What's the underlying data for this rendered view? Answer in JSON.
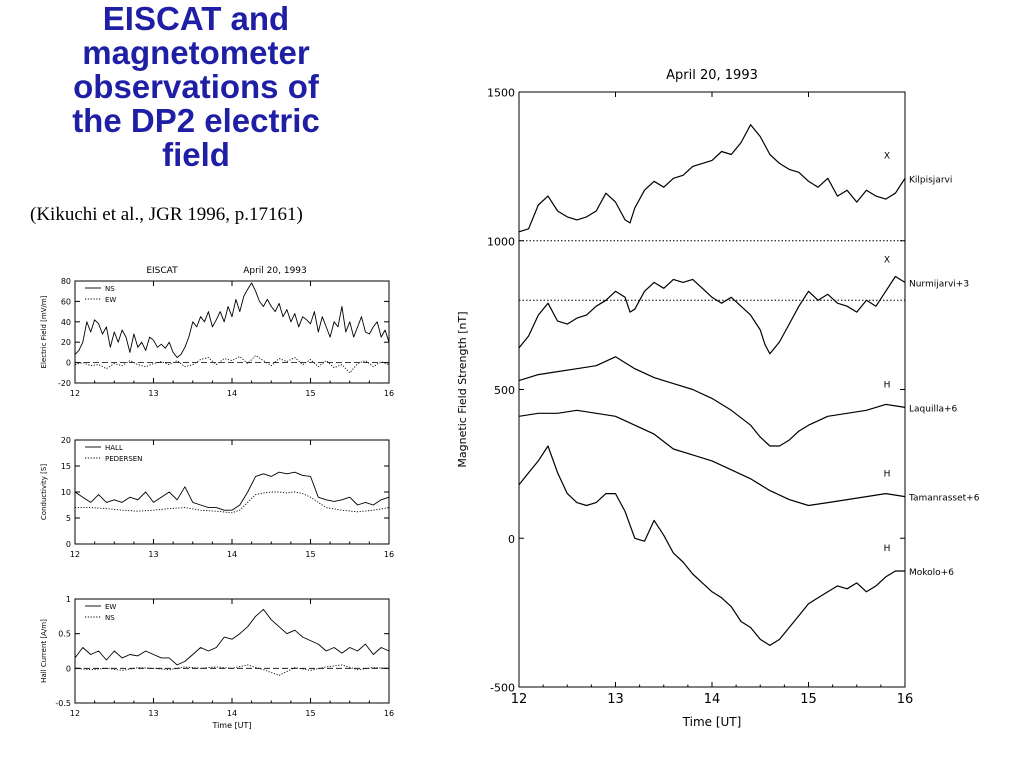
{
  "slide": {
    "title_lines": [
      "EISCAT and",
      "magnetometer",
      "observations of",
      "the DP2 electric",
      "field"
    ],
    "citation": "(Kikuchi et al., JGR 1996, p.17161)"
  },
  "chart_data": [
    {
      "type": "line",
      "title": "EISCAT     April 20, 1993",
      "xlabel": "",
      "ylabel": "Electric Field  [mV/m]",
      "xlim": [
        12,
        16
      ],
      "ylim": [
        -20,
        80
      ],
      "xticks": [
        12,
        13,
        14,
        15,
        16
      ],
      "yticks": [
        -20,
        0,
        20,
        40,
        60,
        80
      ],
      "zero_line": true,
      "legend": "top-left",
      "series": [
        {
          "name": "NS",
          "style": "solid",
          "x": [
            12.0,
            12.05,
            12.1,
            12.15,
            12.2,
            12.25,
            12.3,
            12.35,
            12.4,
            12.45,
            12.5,
            12.55,
            12.6,
            12.65,
            12.7,
            12.75,
            12.8,
            12.85,
            12.9,
            12.95,
            13.0,
            13.05,
            13.1,
            13.15,
            13.2,
            13.25,
            13.3,
            13.35,
            13.4,
            13.45,
            13.5,
            13.55,
            13.6,
            13.65,
            13.7,
            13.75,
            13.8,
            13.85,
            13.9,
            13.95,
            14.0,
            14.05,
            14.1,
            14.15,
            14.2,
            14.25,
            14.3,
            14.35,
            14.4,
            14.45,
            14.5,
            14.55,
            14.6,
            14.65,
            14.7,
            14.75,
            14.8,
            14.85,
            14.9,
            14.95,
            15.0,
            15.05,
            15.1,
            15.15,
            15.2,
            15.25,
            15.3,
            15.35,
            15.4,
            15.45,
            15.5,
            15.55,
            15.6,
            15.65,
            15.7,
            15.75,
            15.8,
            15.85,
            15.9,
            15.95,
            16.0
          ],
          "y": [
            8,
            12,
            20,
            40,
            30,
            42,
            38,
            28,
            35,
            15,
            30,
            20,
            32,
            25,
            10,
            28,
            15,
            20,
            12,
            25,
            22,
            15,
            18,
            14,
            20,
            10,
            5,
            8,
            15,
            25,
            40,
            35,
            45,
            40,
            50,
            35,
            42,
            50,
            40,
            55,
            45,
            62,
            50,
            65,
            72,
            78,
            70,
            60,
            55,
            62,
            55,
            50,
            58,
            45,
            52,
            40,
            48,
            35,
            45,
            42,
            38,
            50,
            30,
            45,
            35,
            25,
            40,
            35,
            55,
            30,
            40,
            25,
            35,
            45,
            30,
            28,
            35,
            40,
            25,
            32,
            20
          ]
        },
        {
          "name": "EW",
          "style": "dotted",
          "x": [
            12.0,
            12.1,
            12.2,
            12.3,
            12.4,
            12.5,
            12.6,
            12.7,
            12.8,
            12.9,
            13.0,
            13.1,
            13.2,
            13.3,
            13.4,
            13.5,
            13.6,
            13.7,
            13.8,
            13.9,
            14.0,
            14.1,
            14.2,
            14.3,
            14.4,
            14.5,
            14.6,
            14.7,
            14.8,
            14.9,
            15.0,
            15.1,
            15.2,
            15.3,
            15.4,
            15.5,
            15.6,
            15.7,
            15.8,
            15.9,
            16.0
          ],
          "y": [
            -2,
            0,
            -3,
            -2,
            -6,
            -1,
            -3,
            2,
            -2,
            -4,
            -1,
            1,
            -2,
            2,
            -4,
            -2,
            3,
            5,
            -2,
            4,
            2,
            6,
            -1,
            7,
            2,
            -3,
            4,
            1,
            5,
            -2,
            3,
            -4,
            2,
            -5,
            -2,
            -10,
            -1,
            2,
            -4,
            1,
            -2
          ]
        }
      ]
    },
    {
      "type": "line",
      "title": "",
      "xlabel": "",
      "ylabel": "Conductivity  [S]",
      "xlim": [
        12,
        16
      ],
      "ylim": [
        0,
        20
      ],
      "xticks": [
        12,
        13,
        14,
        15,
        16
      ],
      "yticks": [
        0,
        5,
        10,
        15,
        20
      ],
      "legend": "top-left",
      "series": [
        {
          "name": "HALL",
          "style": "solid",
          "x": [
            12.0,
            12.1,
            12.2,
            12.3,
            12.4,
            12.5,
            12.6,
            12.7,
            12.8,
            12.9,
            13.0,
            13.1,
            13.2,
            13.3,
            13.4,
            13.5,
            13.6,
            13.7,
            13.8,
            13.9,
            14.0,
            14.1,
            14.2,
            14.3,
            14.4,
            14.5,
            14.6,
            14.7,
            14.8,
            14.9,
            15.0,
            15.1,
            15.2,
            15.3,
            15.4,
            15.5,
            15.6,
            15.7,
            15.8,
            15.9,
            16.0
          ],
          "y": [
            10,
            9,
            8,
            9.5,
            8,
            8.5,
            8,
            9,
            8.5,
            10,
            8,
            9,
            10,
            8.5,
            11,
            8,
            7.5,
            7,
            7,
            6.5,
            6.5,
            7.5,
            10,
            13,
            13.5,
            13,
            13.8,
            13.5,
            13.8,
            13.2,
            13,
            9,
            8.5,
            8.2,
            8.5,
            9,
            7.5,
            8,
            7.5,
            8.5,
            9
          ]
        },
        {
          "name": "PEDERSEN",
          "style": "dotted",
          "x": [
            12.0,
            12.2,
            12.4,
            12.6,
            12.8,
            13.0,
            13.2,
            13.4,
            13.6,
            13.8,
            14.0,
            14.1,
            14.2,
            14.3,
            14.4,
            14.5,
            14.6,
            14.7,
            14.8,
            14.9,
            15.0,
            15.2,
            15.4,
            15.6,
            15.8,
            16.0
          ],
          "y": [
            7,
            7,
            6.8,
            6.5,
            6.3,
            6.5,
            6.8,
            7,
            6.5,
            6.3,
            6,
            6.5,
            8,
            9.5,
            9.8,
            10,
            10,
            9.8,
            10,
            9.7,
            9,
            7,
            6.5,
            6.2,
            6.5,
            7
          ]
        }
      ]
    },
    {
      "type": "line",
      "title": "",
      "xlabel": "Time  [UT]",
      "ylabel": "Hall Current  [A/m]",
      "xlim": [
        12,
        16
      ],
      "ylim": [
        -0.5,
        1.0
      ],
      "xticks": [
        12,
        13,
        14,
        15,
        16
      ],
      "yticks": [
        -0.5,
        0.0,
        0.5,
        1.0
      ],
      "zero_line": true,
      "legend": "top-left",
      "series": [
        {
          "name": "EW",
          "style": "solid",
          "x": [
            12.0,
            12.1,
            12.2,
            12.3,
            12.4,
            12.5,
            12.6,
            12.7,
            12.8,
            12.9,
            13.0,
            13.1,
            13.2,
            13.3,
            13.4,
            13.5,
            13.6,
            13.7,
            13.8,
            13.9,
            14.0,
            14.1,
            14.2,
            14.3,
            14.4,
            14.5,
            14.6,
            14.7,
            14.8,
            14.9,
            15.0,
            15.1,
            15.2,
            15.3,
            15.4,
            15.5,
            15.6,
            15.7,
            15.8,
            15.9,
            16.0
          ],
          "y": [
            0.15,
            0.3,
            0.2,
            0.25,
            0.12,
            0.25,
            0.15,
            0.2,
            0.18,
            0.25,
            0.2,
            0.15,
            0.15,
            0.05,
            0.1,
            0.2,
            0.3,
            0.25,
            0.3,
            0.45,
            0.42,
            0.5,
            0.6,
            0.75,
            0.85,
            0.7,
            0.6,
            0.5,
            0.55,
            0.45,
            0.4,
            0.35,
            0.25,
            0.3,
            0.22,
            0.3,
            0.25,
            0.35,
            0.2,
            0.3,
            0.25
          ]
        },
        {
          "name": "NS",
          "style": "dotted",
          "x": [
            12.0,
            12.2,
            12.4,
            12.6,
            12.8,
            13.0,
            13.2,
            13.4,
            13.6,
            13.8,
            14.0,
            14.2,
            14.4,
            14.6,
            14.8,
            15.0,
            15.2,
            15.4,
            15.6,
            15.8,
            16.0
          ],
          "y": [
            0.0,
            -0.02,
            0.0,
            -0.03,
            0.01,
            0.0,
            -0.02,
            0.02,
            0.0,
            0.02,
            0.0,
            0.05,
            -0.02,
            -0.1,
            0.01,
            -0.03,
            0.02,
            0.05,
            -0.02,
            0.01,
            0.0
          ]
        }
      ]
    },
    {
      "type": "line",
      "title": "April 20, 1993",
      "xlabel": "Time  [UT]",
      "ylabel": "Magnetic Field Strength  [nT]",
      "xlim": [
        12,
        16
      ],
      "ylim": [
        -500,
        1500
      ],
      "xticks": [
        12,
        13,
        14,
        15,
        16
      ],
      "yticks": [
        -500,
        0,
        500,
        1000,
        1500
      ],
      "reference_lines": [
        1000,
        800
      ],
      "series": [
        {
          "name": "Kilpisjarvi",
          "component": "X",
          "style": "solid",
          "x": [
            12.0,
            12.1,
            12.2,
            12.3,
            12.4,
            12.5,
            12.6,
            12.7,
            12.8,
            12.9,
            13.0,
            13.1,
            13.15,
            13.2,
            13.3,
            13.4,
            13.5,
            13.6,
            13.7,
            13.8,
            13.9,
            14.0,
            14.1,
            14.2,
            14.3,
            14.4,
            14.5,
            14.6,
            14.7,
            14.8,
            14.9,
            15.0,
            15.1,
            15.2,
            15.3,
            15.4,
            15.5,
            15.6,
            15.7,
            15.8,
            15.9,
            16.0
          ],
          "y": [
            1030,
            1040,
            1120,
            1150,
            1100,
            1080,
            1070,
            1080,
            1100,
            1160,
            1130,
            1070,
            1060,
            1110,
            1170,
            1200,
            1180,
            1210,
            1220,
            1250,
            1260,
            1270,
            1300,
            1290,
            1330,
            1390,
            1350,
            1290,
            1260,
            1240,
            1230,
            1200,
            1180,
            1210,
            1150,
            1170,
            1130,
            1170,
            1150,
            1140,
            1160,
            1210
          ]
        },
        {
          "name": "Nurmijarvi+3",
          "component": "X",
          "style": "solid",
          "x": [
            12.0,
            12.1,
            12.2,
            12.3,
            12.4,
            12.5,
            12.6,
            12.7,
            12.8,
            12.9,
            13.0,
            13.1,
            13.15,
            13.2,
            13.3,
            13.4,
            13.5,
            13.6,
            13.7,
            13.8,
            13.9,
            14.0,
            14.1,
            14.2,
            14.3,
            14.4,
            14.5,
            14.55,
            14.6,
            14.7,
            14.8,
            14.9,
            15.0,
            15.1,
            15.2,
            15.3,
            15.4,
            15.5,
            15.6,
            15.7,
            15.8,
            15.9,
            16.0
          ],
          "y": [
            640,
            680,
            750,
            790,
            730,
            720,
            740,
            750,
            780,
            800,
            830,
            810,
            760,
            770,
            830,
            860,
            840,
            870,
            860,
            870,
            840,
            810,
            790,
            810,
            780,
            750,
            700,
            650,
            620,
            660,
            720,
            780,
            830,
            800,
            820,
            790,
            780,
            760,
            800,
            780,
            830,
            880,
            860
          ]
        },
        {
          "name": "Laquilla+6",
          "component": "H",
          "style": "solid",
          "x": [
            12.0,
            12.2,
            12.4,
            12.6,
            12.8,
            13.0,
            13.2,
            13.4,
            13.6,
            13.8,
            14.0,
            14.2,
            14.4,
            14.5,
            14.6,
            14.7,
            14.8,
            14.9,
            15.0,
            15.2,
            15.4,
            15.6,
            15.8,
            16.0
          ],
          "y": [
            530,
            550,
            560,
            570,
            580,
            610,
            570,
            540,
            520,
            500,
            470,
            430,
            380,
            340,
            310,
            310,
            330,
            360,
            380,
            410,
            420,
            430,
            450,
            440
          ]
        },
        {
          "name": "Tamanrasset+6",
          "component": "H",
          "style": "solid",
          "x": [
            12.0,
            12.2,
            12.4,
            12.6,
            12.8,
            13.0,
            13.2,
            13.4,
            13.6,
            13.8,
            14.0,
            14.2,
            14.4,
            14.6,
            14.8,
            15.0,
            15.2,
            15.4,
            15.6,
            15.8,
            16.0
          ],
          "y": [
            410,
            420,
            420,
            430,
            420,
            410,
            380,
            350,
            300,
            280,
            260,
            230,
            200,
            160,
            130,
            110,
            120,
            130,
            140,
            150,
            140
          ]
        },
        {
          "name": "Mokolo+6",
          "component": "H",
          "style": "solid",
          "x": [
            12.0,
            12.1,
            12.2,
            12.3,
            12.4,
            12.5,
            12.6,
            12.7,
            12.8,
            12.9,
            13.0,
            13.1,
            13.2,
            13.3,
            13.4,
            13.5,
            13.6,
            13.7,
            13.8,
            13.9,
            14.0,
            14.1,
            14.2,
            14.3,
            14.4,
            14.5,
            14.6,
            14.7,
            14.8,
            14.9,
            15.0,
            15.1,
            15.2,
            15.3,
            15.4,
            15.5,
            15.6,
            15.7,
            15.8,
            15.9,
            16.0
          ],
          "y": [
            180,
            220,
            260,
            310,
            220,
            150,
            120,
            110,
            120,
            150,
            150,
            90,
            0,
            -10,
            60,
            10,
            -50,
            -80,
            -120,
            -150,
            -180,
            -200,
            -230,
            -280,
            -300,
            -340,
            -360,
            -340,
            -300,
            -260,
            -220,
            -200,
            -180,
            -160,
            -170,
            -150,
            -180,
            -160,
            -130,
            -110,
            -110
          ]
        }
      ]
    }
  ]
}
